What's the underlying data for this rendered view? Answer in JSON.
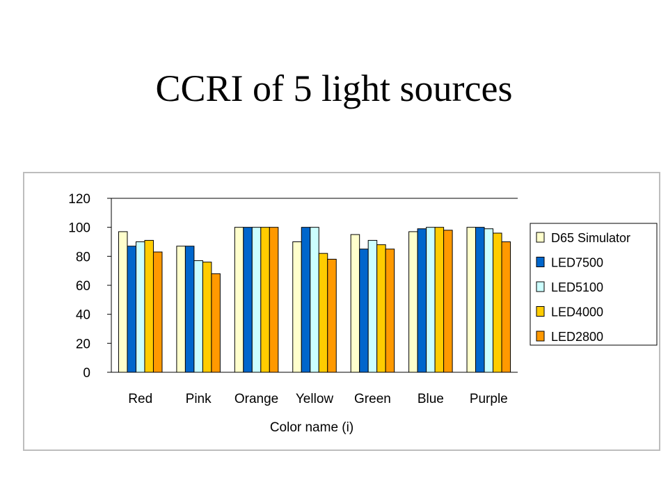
{
  "slide": {
    "title": "CCRI of 5 light sources"
  },
  "chart_data": {
    "type": "bar",
    "title": "",
    "xlabel": "Color name (i)",
    "ylabel": "",
    "ylim": [
      0,
      120
    ],
    "yticks": [
      0,
      20,
      40,
      60,
      80,
      100,
      120
    ],
    "grid": false,
    "legend_position": "right",
    "categories": [
      "Red",
      "Pink",
      "Orange",
      "Yellow",
      "Green",
      "Blue",
      "Purple"
    ],
    "series": [
      {
        "name": "D65 Simulator",
        "color": "#FFFFCC",
        "values": [
          97,
          87,
          100,
          90,
          95,
          97,
          100
        ]
      },
      {
        "name": "LED7500",
        "color": "#0066CC",
        "values": [
          87,
          87,
          100,
          100,
          85,
          99,
          100
        ]
      },
      {
        "name": "LED5100",
        "color": "#CCFFFF",
        "values": [
          90,
          77,
          100,
          100,
          91,
          100,
          99
        ]
      },
      {
        "name": "LED4000",
        "color": "#FFCC00",
        "values": [
          91,
          76,
          100,
          82,
          88,
          100,
          96
        ]
      },
      {
        "name": "LED2800",
        "color": "#FF9900",
        "values": [
          83,
          68,
          100,
          78,
          85,
          98,
          90
        ]
      }
    ]
  }
}
